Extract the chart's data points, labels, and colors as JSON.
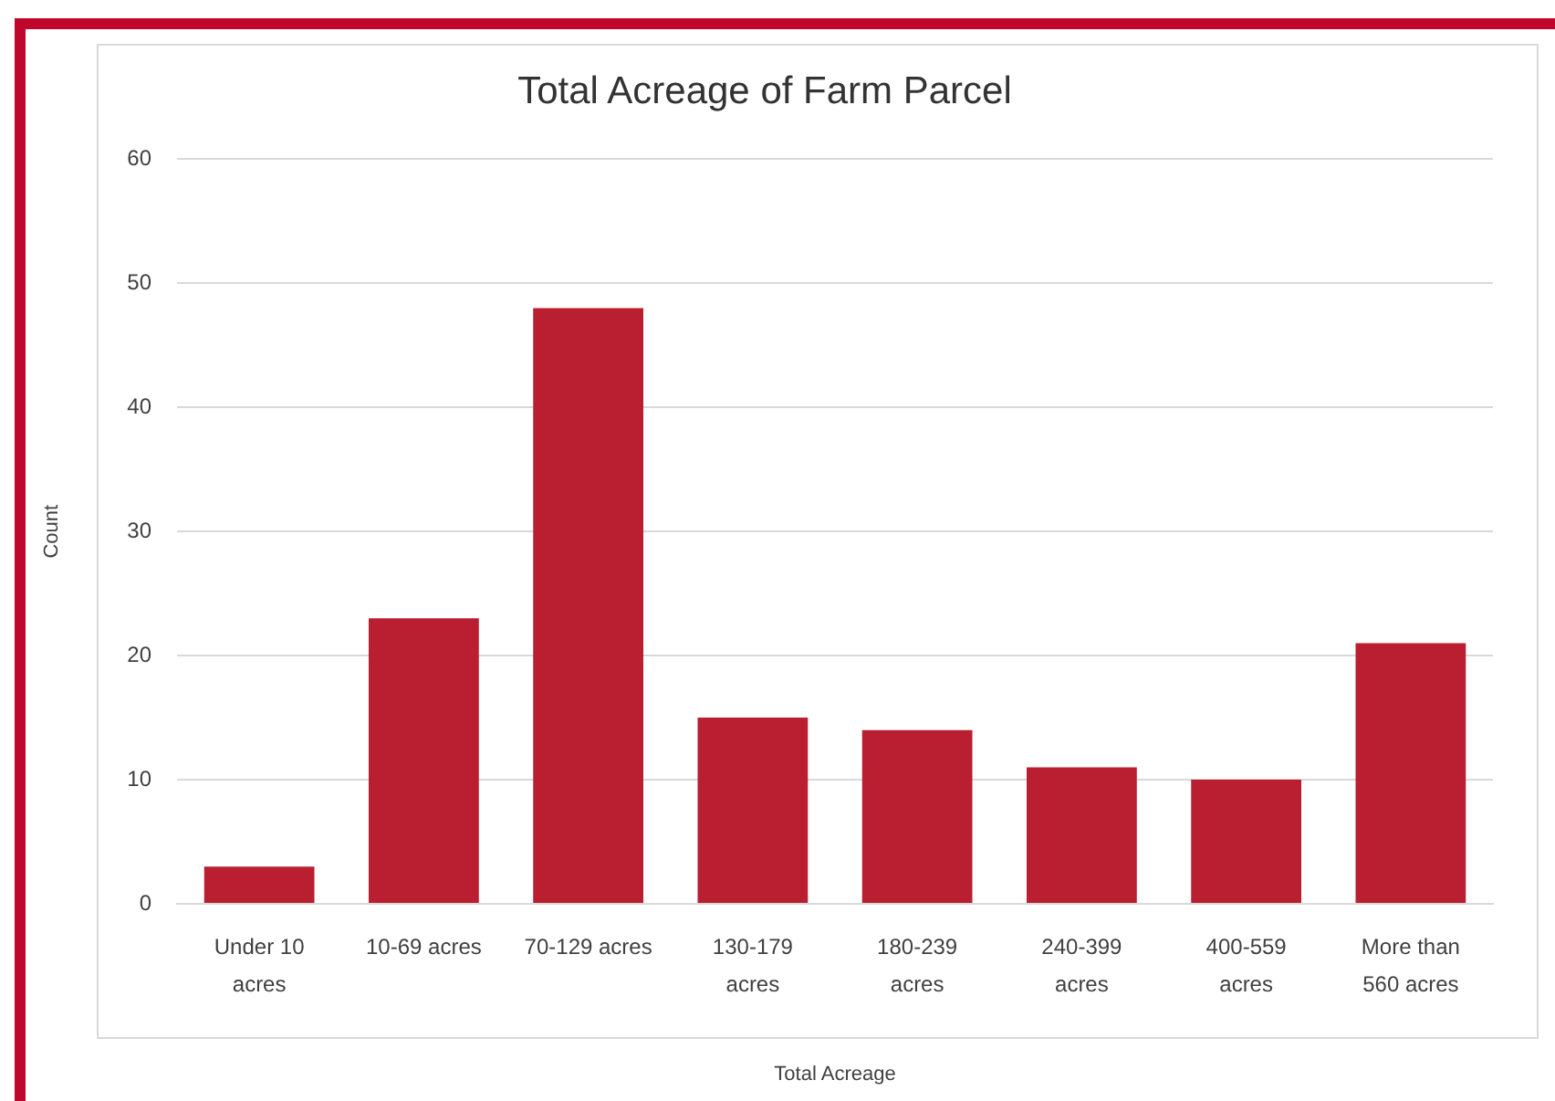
{
  "chart_data": {
    "type": "bar",
    "title": "Total Acreage of Farm Parcel",
    "xlabel": "Total Acreage",
    "ylabel": "Count",
    "categories": [
      "Under 10 acres",
      "10-69 acres",
      "70-129 acres",
      "130-179 acres",
      "180-239 acres",
      "240-399 acres",
      "400-559 acres",
      "More than 560 acres"
    ],
    "values": [
      3,
      23,
      48,
      15,
      14,
      11,
      10,
      21
    ],
    "color": "#b91f30",
    "ylim": [
      0,
      60
    ],
    "yticks": [
      0,
      10,
      20,
      30,
      40,
      50,
      60
    ],
    "grid": "y"
  }
}
